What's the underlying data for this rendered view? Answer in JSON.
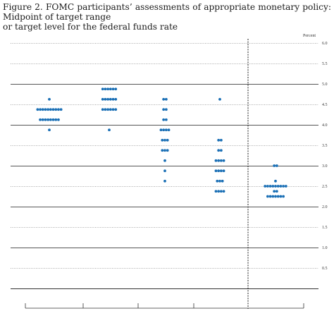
{
  "figure": {
    "title_line1": "Figure 2.  FOMC participants’ assessments of appropriate monetary policy:  Midpoint of target range",
    "title_line2": "or target level for the federal funds rate"
  },
  "colors": {
    "dot": "#1a6fb5",
    "grid": "#555555",
    "text": "#1a1a1a"
  },
  "chart_data": {
    "type": "scatter",
    "title": "Figure 2.  FOMC participants’ assessments of appropriate monetary policy:  Midpoint of target range or target level for the federal funds rate",
    "ylabel": "Percent",
    "ylim": [
      0,
      6.0
    ],
    "y_ticks": [
      "6.0",
      "5.5",
      "5.0",
      "4.5",
      "4.0",
      "3.5",
      "3.0",
      "2.5",
      "2.0",
      "1.5",
      "1.0",
      "0.5"
    ],
    "y_major": [
      5.0,
      4.0,
      3.0,
      2.0,
      1.0
    ],
    "x_labels_visible": false,
    "columns": [
      {
        "index": 0,
        "rows": [
          {
            "y": 4.625,
            "n": 1
          },
          {
            "y": 4.375,
            "n": 10
          },
          {
            "y": 4.125,
            "n": 8
          },
          {
            "y": 3.875,
            "n": 1
          }
        ]
      },
      {
        "index": 1,
        "rows": [
          {
            "y": 4.875,
            "n": 6
          },
          {
            "y": 4.625,
            "n": 6
          },
          {
            "y": 4.375,
            "n": 6
          },
          {
            "y": 3.875,
            "n": 1
          }
        ]
      },
      {
        "index": 2,
        "rows": [
          {
            "y": 4.625,
            "n": 2
          },
          {
            "y": 4.375,
            "n": 2
          },
          {
            "y": 4.125,
            "n": 2
          },
          {
            "y": 3.875,
            "n": 4
          },
          {
            "y": 3.625,
            "n": 3
          },
          {
            "y": 3.375,
            "n": 3
          },
          {
            "y": 3.125,
            "n": 1
          },
          {
            "y": 2.875,
            "n": 1
          },
          {
            "y": 2.625,
            "n": 1
          }
        ]
      },
      {
        "index": 3,
        "rows": [
          {
            "y": 4.625,
            "n": 1
          },
          {
            "y": 3.625,
            "n": 2
          },
          {
            "y": 3.375,
            "n": 2
          },
          {
            "y": 3.125,
            "n": 4
          },
          {
            "y": 2.875,
            "n": 4
          },
          {
            "y": 2.625,
            "n": 3
          },
          {
            "y": 2.375,
            "n": 4
          }
        ]
      },
      {
        "index": 4,
        "rows": [
          {
            "y": 3.0,
            "n": 2
          },
          {
            "y": 2.625,
            "n": 1
          },
          {
            "y": 2.5,
            "n": 9
          },
          {
            "y": 2.375,
            "n": 2
          },
          {
            "y": 2.25,
            "n": 7
          }
        ]
      }
    ]
  }
}
